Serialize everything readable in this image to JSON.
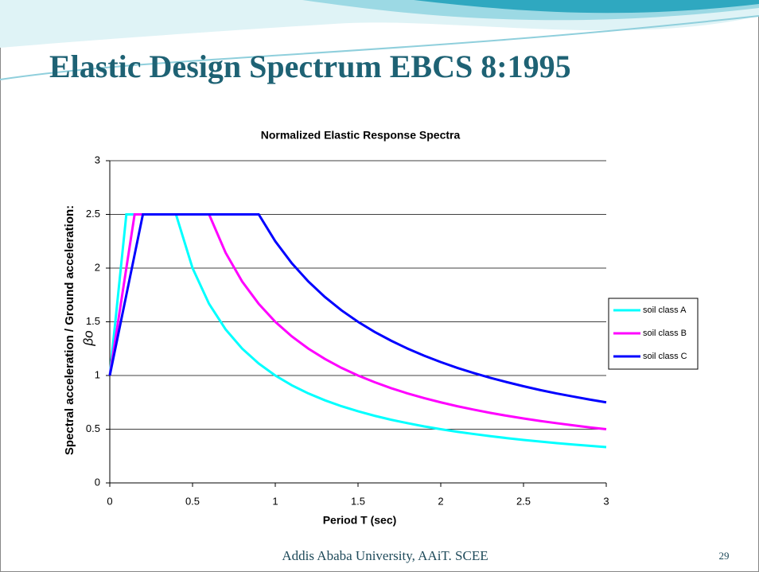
{
  "slide": {
    "title": "Elastic Design Spectrum EBCS 8:1995",
    "footer": "Addis Ababa University, AAiT. SCEE",
    "page_number": "29"
  },
  "chart_data": {
    "type": "line",
    "title": "Normalized Elastic Response Spectra",
    "x_label": "Period T (sec)",
    "y_label": [
      "Spectral acceleration / Ground acceleration:",
      "βo"
    ],
    "x": [
      0,
      0.1,
      0.15,
      0.2,
      0.3,
      0.4,
      0.5,
      0.6,
      0.7,
      0.8,
      0.9,
      1.0,
      1.1,
      1.2,
      1.3,
      1.4,
      1.5,
      1.6,
      1.7,
      1.8,
      1.9,
      2.0,
      2.1,
      2.2,
      2.3,
      2.4,
      2.5,
      2.6,
      2.7,
      2.8,
      2.9,
      3.0
    ],
    "series": [
      {
        "name": "soil class A",
        "color": "#00ffff",
        "values": [
          1,
          2.5,
          2.5,
          2.5,
          2.5,
          2.5,
          2,
          1.667,
          1.429,
          1.25,
          1.111,
          1,
          0.909,
          0.833,
          0.769,
          0.714,
          0.667,
          0.625,
          0.588,
          0.556,
          0.526,
          0.5,
          0.476,
          0.455,
          0.435,
          0.417,
          0.4,
          0.385,
          0.37,
          0.357,
          0.345,
          0.333
        ]
      },
      {
        "name": "soil class B",
        "color": "#ff00ff",
        "values": [
          1,
          2,
          2.5,
          2.5,
          2.5,
          2.5,
          2.5,
          2.5,
          2.143,
          1.875,
          1.667,
          1.5,
          1.364,
          1.25,
          1.154,
          1.071,
          1,
          0.938,
          0.882,
          0.833,
          0.789,
          0.75,
          0.714,
          0.682,
          0.652,
          0.625,
          0.6,
          0.577,
          0.556,
          0.536,
          0.517,
          0.5
        ]
      },
      {
        "name": "soil class C",
        "color": "#0000ff",
        "values": [
          1,
          1.75,
          2.125,
          2.5,
          2.5,
          2.5,
          2.5,
          2.5,
          2.5,
          2.5,
          2.5,
          2.25,
          2.045,
          1.875,
          1.731,
          1.607,
          1.5,
          1.406,
          1.324,
          1.25,
          1.184,
          1.125,
          1.071,
          1.023,
          0.978,
          0.938,
          0.9,
          0.865,
          0.833,
          0.804,
          0.776,
          0.75
        ]
      }
    ],
    "xlim": [
      0,
      3
    ],
    "xticks": [
      0,
      0.5,
      1,
      1.5,
      2,
      2.5,
      3
    ],
    "ylim": [
      0,
      3
    ],
    "yticks": [
      0,
      0.5,
      1,
      1.5,
      2,
      2.5,
      3
    ],
    "grid": true,
    "legend": "right"
  }
}
